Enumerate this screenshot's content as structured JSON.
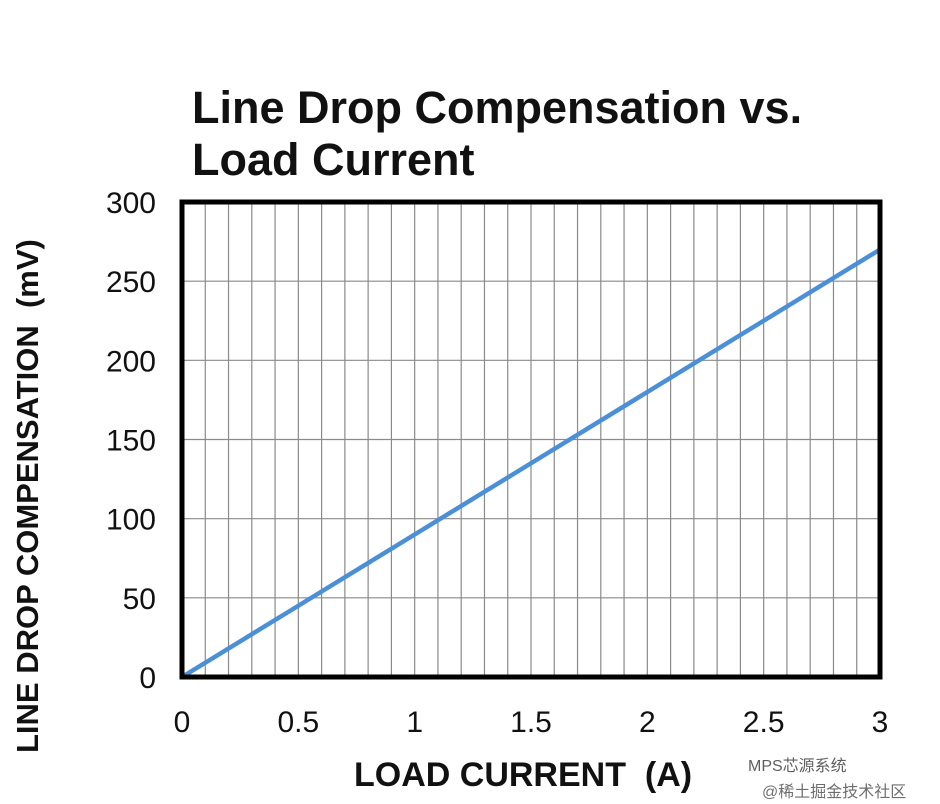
{
  "chart_data": {
    "type": "line",
    "title": "Line Drop Compensation vs. Load Current",
    "title_lines": [
      "Line Drop Compensation vs.",
      "Load Current"
    ],
    "xlabel": "LOAD CURRENT  (A)",
    "ylabel": "LINE DROP COMPENSATION  (mV)",
    "xlim": [
      0,
      3
    ],
    "ylim": [
      0,
      300
    ],
    "x_ticks": [
      "0",
      "0.5",
      "1",
      "1.5",
      "2",
      "2.5",
      "3"
    ],
    "y_ticks": [
      "0",
      "50",
      "100",
      "150",
      "200",
      "250",
      "300"
    ],
    "grid": true,
    "series": [
      {
        "x": [
          0,
          0.5,
          1,
          1.5,
          2,
          2.5,
          3
        ],
        "y": [
          0,
          45,
          90,
          135,
          180,
          225,
          270
        ]
      }
    ]
  },
  "watermark": {
    "line1": "MPS芯源系统",
    "line2": "@稀土掘金技术社区"
  },
  "colors": {
    "series": "#4a8fd8",
    "grid": "#8a8a8a",
    "frame": "#000000"
  }
}
